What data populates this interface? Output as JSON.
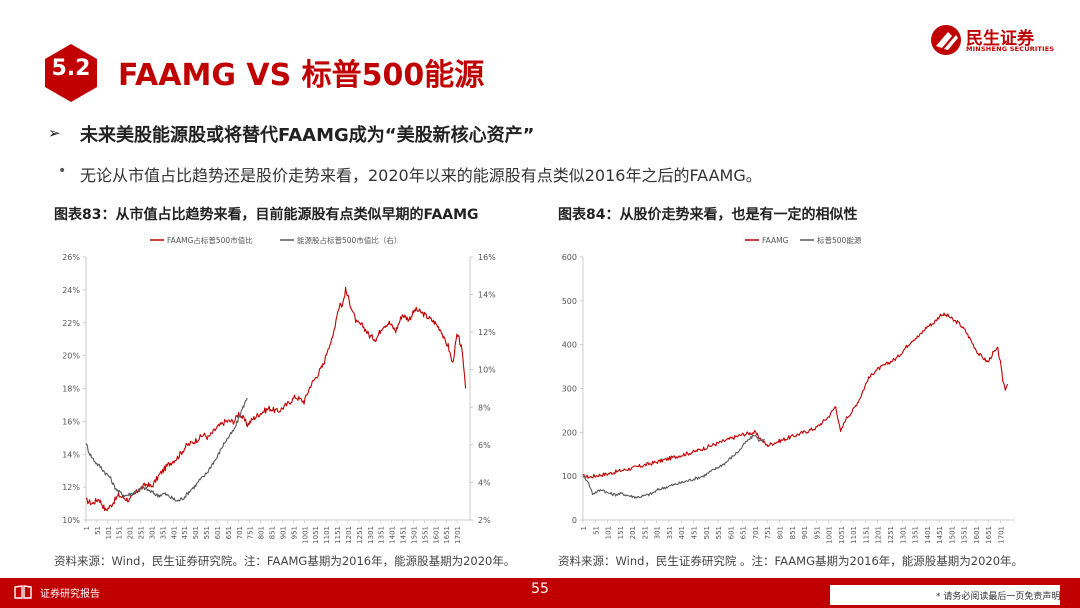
{
  "section": {
    "number": "5.2",
    "title": "FAAMG VS 标普500能源"
  },
  "logo": {
    "name": "民生证券",
    "subtitle": "MINSHENG SECURITIES"
  },
  "headline": {
    "arrow": "➢",
    "text": "未来美股能源股或将替代FAAMG成为“美股新核心资产”"
  },
  "bullet": {
    "dot": "•",
    "text": "无论从市值占比趋势还是股价走势来看，2020年以来的能源股有点类似2016年之后的FAAMG。"
  },
  "colors": {
    "accent": "#c00000",
    "energy": "#595959"
  },
  "footer": {
    "report": "证券研究报告",
    "page": "55",
    "disclaimer": "* 请务必阅读最后一页免责声明"
  },
  "chart_data": [
    {
      "type": "line",
      "title": "图表83：从市值占比趋势来看，目前能源股有点类似早期的FAAMG",
      "source": "资料来源：Wind，民生证券研究院。注：FAAMG基期为2016年，能源股基期为2020年。",
      "legend": [
        "FAAMG占标普500市值比",
        "能源股占标普500市值比（右）"
      ],
      "legend_placement": "top",
      "x_ticks": [
        "1",
        "51",
        "101",
        "151",
        "201",
        "251",
        "301",
        "351",
        "401",
        "451",
        "501",
        "551",
        "601",
        "651",
        "701",
        "751",
        "801",
        "851",
        "901",
        "951",
        "1001",
        "1051",
        "1101",
        "1151",
        "1201",
        "1251",
        "1301",
        "1351",
        "1401",
        "1451",
        "1501",
        "1551",
        "1601",
        "1651",
        "1701"
      ],
      "x_range": [
        1,
        1760
      ],
      "y_left_ticks": [
        "10%",
        "12%",
        "14%",
        "16%",
        "18%",
        "20%",
        "22%",
        "24%",
        "26%"
      ],
      "ylim_left": [
        10,
        26
      ],
      "y_right_ticks": [
        "2%",
        "4%",
        "6%",
        "8%",
        "10%",
        "12%",
        "14%",
        "16%"
      ],
      "ylim_right": [
        2,
        16
      ],
      "grid": false,
      "series": [
        {
          "name": "FAAMG占标普500市值比",
          "axis": "left",
          "color": "#c00000",
          "x": [
            1,
            30,
            60,
            90,
            110,
            150,
            200,
            240,
            280,
            300,
            340,
            380,
            420,
            460,
            500,
            540,
            560,
            600,
            640,
            680,
            700,
            720,
            740,
            770,
            800,
            840,
            880,
            920,
            960,
            1000,
            1030,
            1060,
            1090,
            1110,
            1130,
            1150,
            1165,
            1175,
            1190,
            1210,
            1240,
            1270,
            1300,
            1330,
            1360,
            1390,
            1420,
            1450,
            1480,
            1510,
            1540,
            1570,
            1600,
            1630,
            1640,
            1660,
            1680,
            1700,
            1710,
            1720,
            1730,
            1740
          ],
          "values": [
            11.2,
            11.0,
            11.3,
            10.6,
            10.8,
            11.5,
            11.2,
            11.8,
            12.2,
            12.0,
            12.8,
            13.4,
            13.8,
            14.5,
            14.8,
            15.2,
            15.0,
            15.6,
            16.0,
            16.0,
            16.5,
            16.2,
            15.8,
            16.2,
            16.5,
            16.8,
            16.6,
            17.0,
            17.5,
            17.2,
            18.2,
            18.8,
            19.5,
            20.5,
            21.0,
            22.5,
            23.2,
            23.0,
            24.0,
            23.2,
            22.0,
            21.8,
            21.2,
            21.0,
            21.8,
            22.0,
            21.5,
            22.5,
            22.2,
            22.8,
            22.6,
            22.3,
            22.0,
            21.5,
            21.0,
            20.6,
            19.5,
            21.2,
            21.0,
            20.5,
            19.5,
            18.0
          ]
        },
        {
          "name": "能源股占标普500市值比（右）",
          "axis": "right",
          "color": "#595959",
          "x": [
            1,
            15,
            30,
            50,
            70,
            90,
            110,
            130,
            150,
            180,
            210,
            240,
            270,
            300,
            330,
            360,
            390,
            420,
            450,
            480,
            500,
            520,
            540,
            560,
            580,
            600,
            620,
            640,
            660,
            680,
            700,
            720,
            740
          ],
          "values": [
            6.1,
            5.6,
            5.3,
            5.0,
            4.8,
            4.5,
            4.3,
            3.8,
            3.5,
            3.3,
            3.4,
            3.6,
            3.7,
            3.5,
            3.3,
            3.4,
            3.2,
            3.0,
            3.2,
            3.6,
            3.8,
            4.1,
            4.3,
            4.6,
            5.0,
            5.3,
            5.8,
            6.2,
            6.5,
            6.8,
            7.4,
            8.0,
            8.5
          ]
        }
      ]
    },
    {
      "type": "line",
      "title": "图表84：从股价走势来看，也是有一定的相似性",
      "source": "资料来源：Wind，民生证券研究院 。注：FAAMG基期为2016年，能源股基期为2020年。",
      "legend": [
        "FAAMG",
        "标普500能源"
      ],
      "legend_placement": "top",
      "x_ticks": [
        "1",
        "51",
        "101",
        "151",
        "201",
        "251",
        "301",
        "351",
        "401",
        "451",
        "501",
        "551",
        "601",
        "651",
        "701",
        "751",
        "801",
        "851",
        "901",
        "951",
        "1001",
        "1051",
        "1101",
        "1151",
        "1201",
        "1251",
        "1301",
        "1351",
        "1401",
        "1451",
        "1501",
        "1551",
        "1601",
        "1651",
        "1701"
      ],
      "x_range": [
        1,
        1760
      ],
      "y_ticks": [
        "0",
        "100",
        "200",
        "300",
        "400",
        "500",
        "600"
      ],
      "ylim": [
        0,
        600
      ],
      "grid": false,
      "series": [
        {
          "name": "FAAMG",
          "color": "#c00000",
          "x": [
            1,
            30,
            60,
            100,
            150,
            200,
            250,
            300,
            350,
            400,
            450,
            500,
            550,
            600,
            650,
            700,
            750,
            800,
            850,
            900,
            950,
            1000,
            1030,
            1050,
            1070,
            1100,
            1130,
            1160,
            1190,
            1220,
            1250,
            1280,
            1310,
            1340,
            1370,
            1400,
            1430,
            1460,
            1490,
            1510,
            1530,
            1560,
            1590,
            1610,
            1630,
            1650,
            1670,
            1690,
            1700,
            1710,
            1720,
            1730
          ],
          "values": [
            100,
            98,
            102,
            105,
            112,
            118,
            125,
            132,
            140,
            148,
            155,
            165,
            175,
            185,
            195,
            200,
            170,
            180,
            190,
            200,
            210,
            235,
            260,
            200,
            230,
            250,
            280,
            320,
            340,
            350,
            360,
            370,
            390,
            410,
            420,
            440,
            450,
            470,
            465,
            455,
            450,
            430,
            400,
            380,
            370,
            360,
            380,
            390,
            360,
            320,
            300,
            310
          ]
        },
        {
          "name": "标普500能源",
          "color": "#595959",
          "x": [
            1,
            20,
            40,
            60,
            80,
            100,
            130,
            160,
            190,
            220,
            250,
            280,
            310,
            340,
            370,
            400,
            430,
            460,
            490,
            520,
            550,
            580,
            600,
            620,
            640,
            660,
            680,
            700,
            720,
            740
          ],
          "values": [
            100,
            90,
            60,
            65,
            70,
            62,
            58,
            60,
            55,
            52,
            55,
            60,
            70,
            75,
            80,
            85,
            90,
            95,
            100,
            110,
            120,
            130,
            140,
            150,
            160,
            175,
            185,
            195,
            180,
            185
          ]
        }
      ]
    }
  ]
}
